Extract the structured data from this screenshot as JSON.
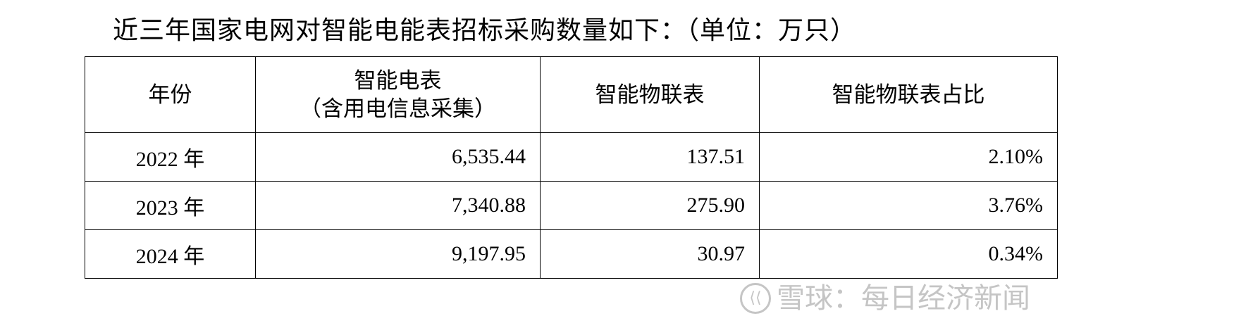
{
  "title": "近三年国家电网对智能电能表招标采购数量如下：（单位：万只）",
  "table": {
    "headers": [
      "年份",
      "智能电表",
      "（含用电信息采集）",
      "智能物联表",
      "智能物联表占比"
    ],
    "rows": [
      {
        "year": "2022 年",
        "smart_meter": "6,535.44",
        "iot_meter": "137.51",
        "iot_share": "2.10%"
      },
      {
        "year": "2023 年",
        "smart_meter": "7,340.88",
        "iot_meter": "275.90",
        "iot_share": "3.76%"
      },
      {
        "year": "2024 年",
        "smart_meter": "9,197.95",
        "iot_meter": "30.97",
        "iot_share": "0.34%"
      }
    ]
  },
  "watermark": {
    "text": "雪球：每日经济新闻",
    "logo": "snowball-logo-icon"
  }
}
